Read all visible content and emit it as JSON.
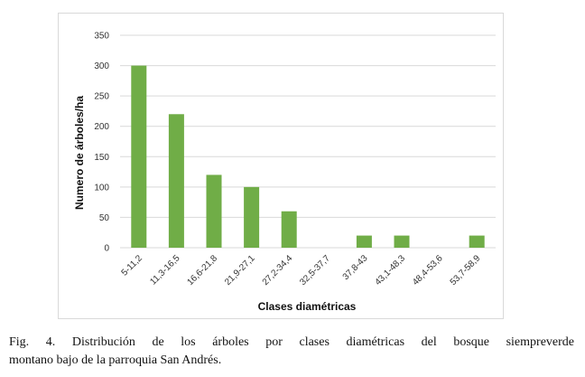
{
  "chart_data": {
    "type": "bar",
    "categories": [
      "5-11,2",
      "11,3-16,5",
      "16,6-21,8",
      "21,9-27,1",
      "27,2-34,4",
      "32,5-37,7",
      "37,8-43",
      "43,1-48,3",
      "48,4-53,6",
      "53,7-58,9"
    ],
    "values": [
      300,
      220,
      120,
      100,
      60,
      0,
      20,
      20,
      0,
      20
    ],
    "xlabel": "Clases diamétricas",
    "ylabel": "Numero de árboles/ha",
    "ylim": [
      0,
      350
    ],
    "yticks": [
      0,
      50,
      100,
      150,
      200,
      250,
      300,
      350
    ],
    "grid": true,
    "bar_color": "#70ad47",
    "grid_color": "#d9d9d9"
  },
  "caption": {
    "line1": "Fig. 4. Distribución de los árboles por clases diamétricas del bosque siempreverde",
    "line2": "montano bajo de la parroquia San Andrés."
  }
}
